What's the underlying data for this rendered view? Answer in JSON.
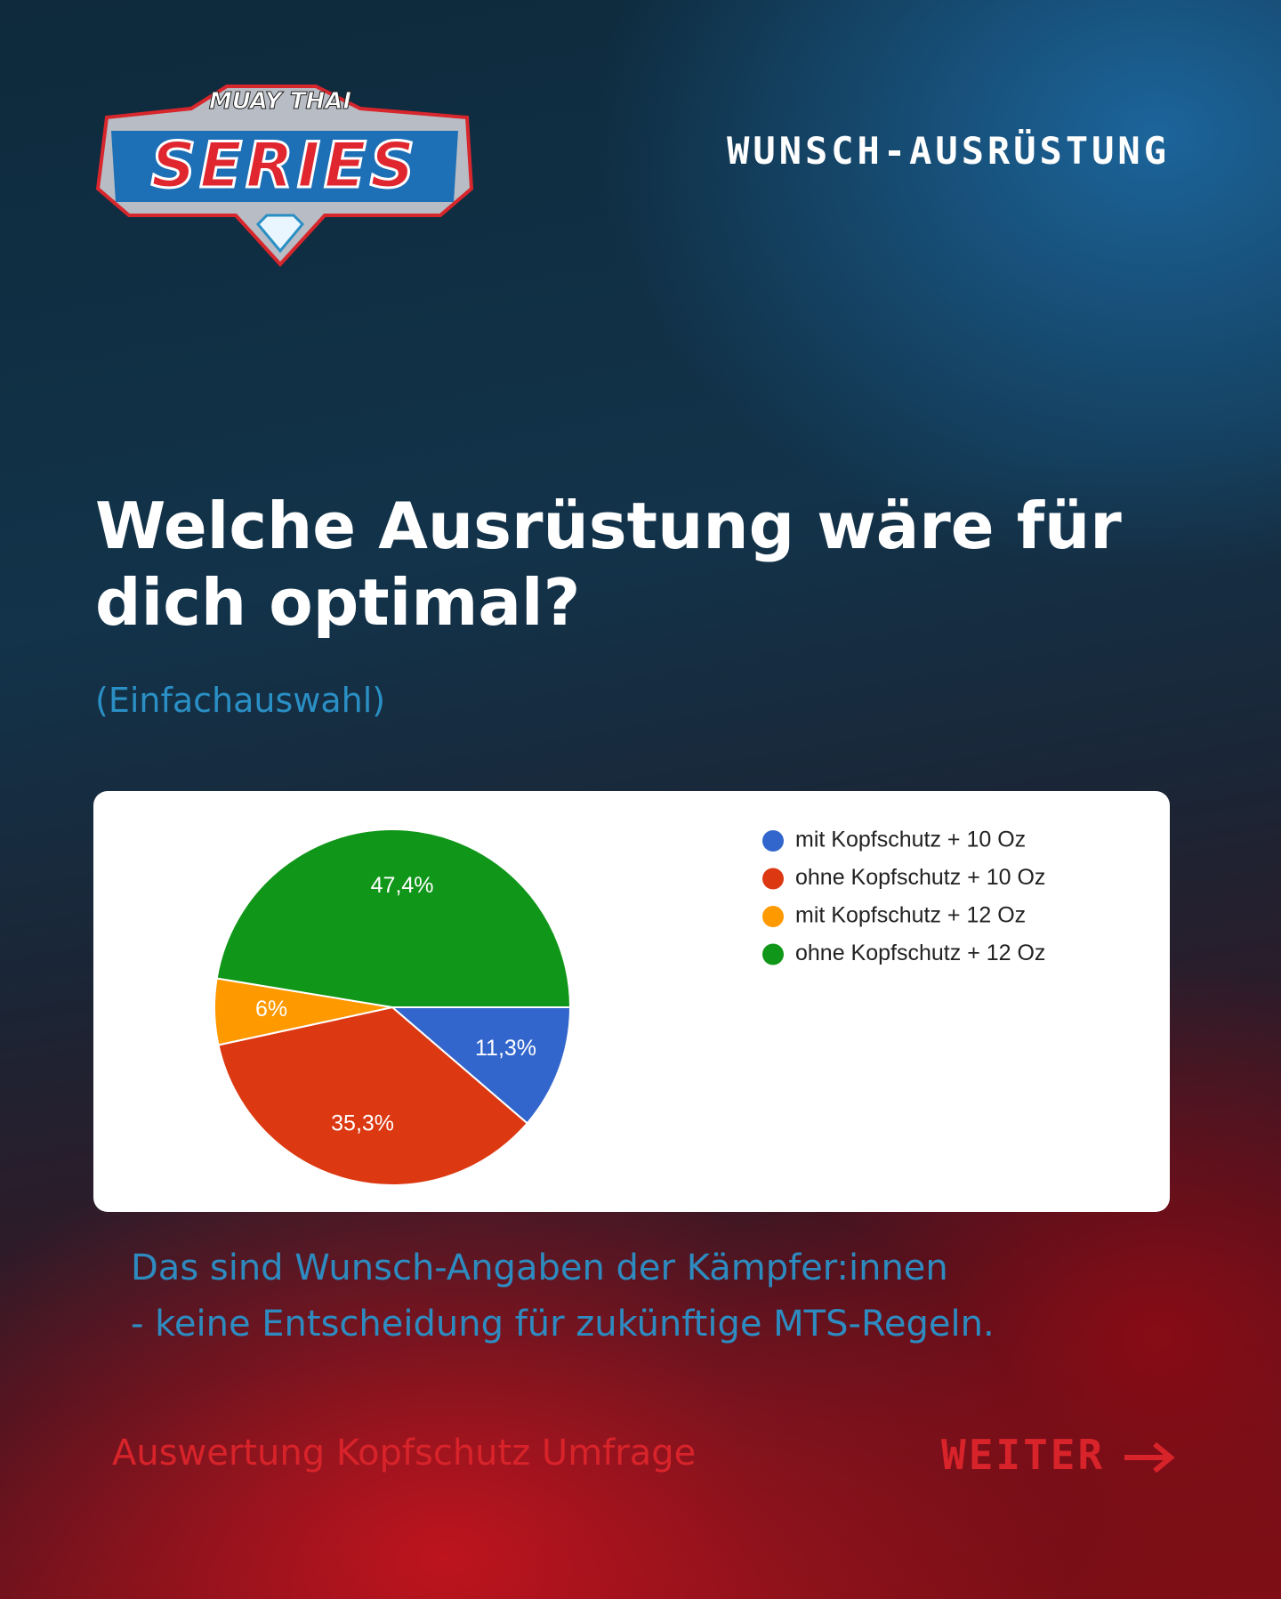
{
  "logo": {
    "top": "MUAY THAI",
    "main": "SERIES"
  },
  "header": "WUNSCH-AUSRÜSTUNG",
  "question": "Welche Ausrüstung wäre für dich optimal?",
  "subtitle": "(Einfachauswahl)",
  "chart_data": {
    "type": "pie",
    "categories": [
      "mit Kopfschutz + 10 Oz",
      "ohne Kopfschutz + 10 Oz",
      "mit Kopfschutz + 12 Oz",
      "ohne Kopfschutz + 12 Oz"
    ],
    "values": [
      11.3,
      35.3,
      6,
      47.4
    ],
    "value_labels": [
      "11,3%",
      "35,3%",
      "6%",
      "47,4%"
    ],
    "colors": [
      "#3366cc",
      "#dc3912",
      "#ff9900",
      "#109618"
    ]
  },
  "note": [
    "Das sind Wunsch-Angaben der Kämpfer:innen",
    "- keine Entscheidung für zukünftige MTS-Regeln."
  ],
  "footer": {
    "topic": "Auswertung Kopfschutz Umfrage",
    "next": "WEITER"
  }
}
